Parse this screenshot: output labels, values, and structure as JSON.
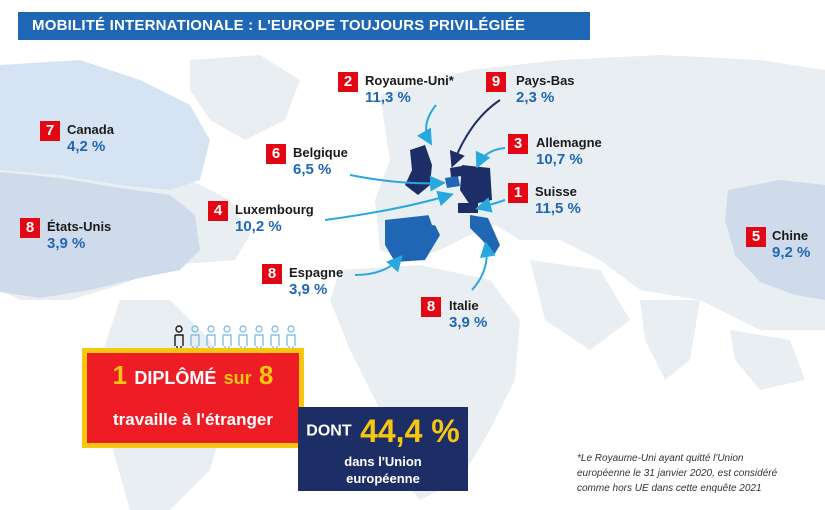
{
  "title": "MOBILITÉ INTERNATIONALE : L'EUROPE TOUJOURS PRIVILÉGIÉE",
  "countries": {
    "canada": {
      "rank": "7",
      "name": "Canada",
      "value": "4,2 %"
    },
    "usa": {
      "rank": "8",
      "name": "États-Unis",
      "value": "3,9 %"
    },
    "uk": {
      "rank": "2",
      "name": "Royaume-Uni*",
      "value": "11,3 %"
    },
    "netherlands": {
      "rank": "9",
      "name": "Pays-Bas",
      "value": "2,3 %"
    },
    "belgium": {
      "rank": "6",
      "name": "Belgique",
      "value": "6,5 %"
    },
    "germany": {
      "rank": "3",
      "name": "Allemagne",
      "value": "10,7 %"
    },
    "luxembourg": {
      "rank": "4",
      "name": "Luxembourg",
      "value": "10,2 %"
    },
    "switzerland": {
      "rank": "1",
      "name": "Suisse",
      "value": "11,5 %"
    },
    "spain": {
      "rank": "8",
      "name": "Espagne",
      "value": "3,9 %"
    },
    "italy": {
      "rank": "8",
      "name": "Italie",
      "value": "3,9 %"
    },
    "china": {
      "rank": "5",
      "name": "Chine",
      "value": "9,2 %"
    }
  },
  "highlight": {
    "num1": "1",
    "diplome": "DIPLÔMÉ",
    "sur": "sur",
    "num8": "8",
    "line2": "travaille à l'étranger"
  },
  "eu": {
    "dont": "DONT",
    "pct": "44,4 %",
    "line2": "dans l'Union",
    "line3": "européenne"
  },
  "footnote": {
    "l1": "*Le Royaume-Uni ayant quitté l'Union",
    "l2": "européenne le 31 janvier 2020, est considéré",
    "l3": "comme hors UE dans cette enquête 2021"
  },
  "colors": {
    "title_bg": "#1f67b5",
    "rank_red": "#e30613",
    "value_blue": "#1f67b5",
    "highlight_red": "#ee1c25",
    "highlight_yellow": "#f6c611",
    "eu_navy": "#1d2e66",
    "land": "#e9eef3",
    "destination_light": "#d5e3f2",
    "destination_dark": "#1d2e66",
    "arrow": "#29a7df"
  }
}
